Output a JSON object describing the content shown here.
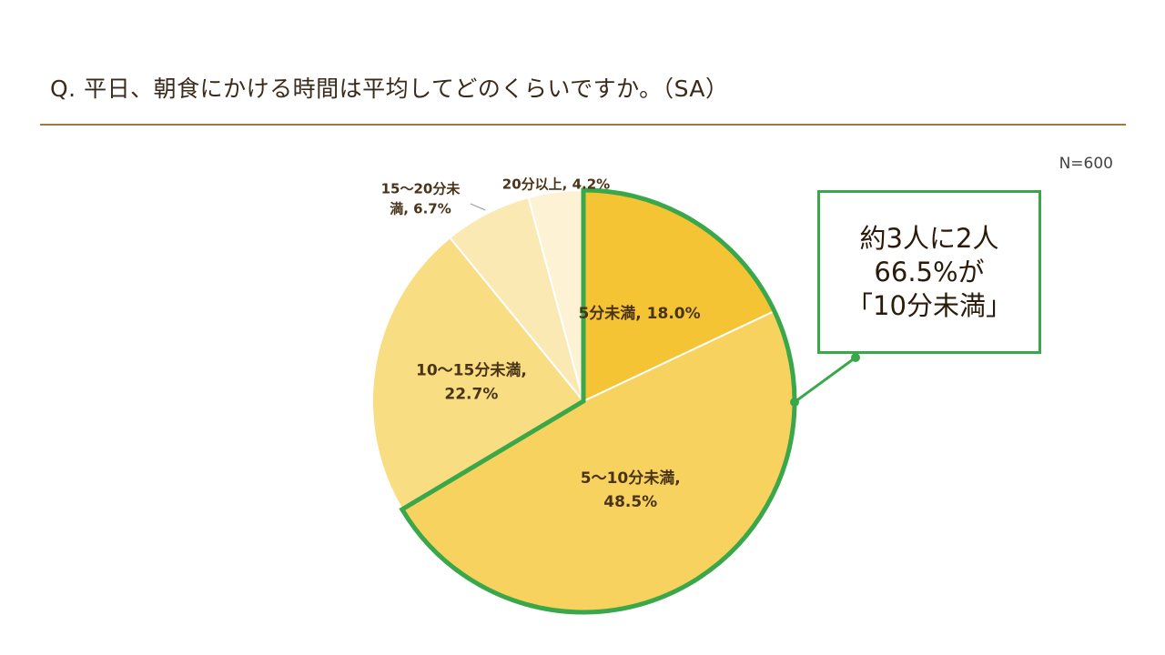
{
  "title": "Q.  平日、朝食にかける時間は平均してどのくらいですか。（SA）",
  "sample_size": "N=600",
  "callout": {
    "lines": [
      "約3人に2人",
      "66.5%が",
      "「10分未満」"
    ],
    "border_color": "#3aa84a"
  },
  "colors": {
    "accent_line": "#a07a3c",
    "highlight": "#3aa84a"
  },
  "chart_data": {
    "type": "pie",
    "title": "",
    "start": "12 o'clock, clockwise",
    "slices": [
      {
        "category": "5分未満",
        "value": 18.0,
        "label_lines": [
          "5分未満, 18.0%"
        ],
        "color": "#f5c434"
      },
      {
        "category": "5〜10分未満",
        "value": 48.5,
        "label_lines": [
          "5〜10分未満,",
          "48.5%"
        ],
        "color": "#f8d25e"
      },
      {
        "category": "10〜15分未満",
        "value": 22.7,
        "label_lines": [
          "10〜15分未満,",
          "22.7%"
        ],
        "color": "#f8dd82"
      },
      {
        "category": "15〜20分未満",
        "value": 6.7,
        "label_lines": [
          "15〜20分未",
          "満, 6.7%"
        ],
        "color": "#fbe9b4"
      },
      {
        "category": "20分以上",
        "value": 4.2,
        "label_lines": [
          "20分以上, 4.2%"
        ],
        "color": "#fdf3d4"
      }
    ],
    "highlighted_categories": [
      "5分未満",
      "5〜10分未満"
    ],
    "highlighted_total": 66.5
  }
}
